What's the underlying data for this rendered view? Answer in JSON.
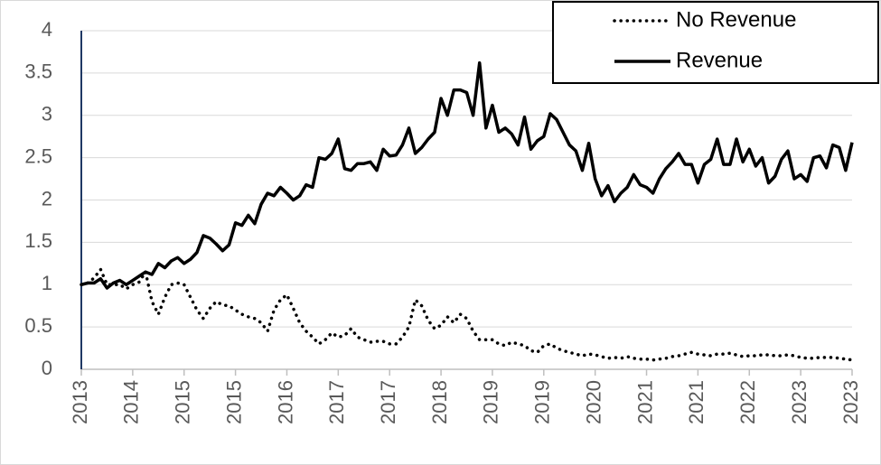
{
  "chart_data": {
    "type": "line",
    "categories": [
      "2013",
      null,
      null,
      null,
      null,
      null,
      null,
      null,
      "2014",
      null,
      null,
      null,
      null,
      null,
      null,
      null,
      "2015",
      null,
      null,
      null,
      null,
      null,
      null,
      null,
      "2015",
      null,
      null,
      null,
      null,
      null,
      null,
      null,
      "2016",
      null,
      null,
      null,
      null,
      null,
      null,
      null,
      "2017",
      null,
      null,
      null,
      null,
      null,
      null,
      null,
      "2017",
      null,
      null,
      null,
      null,
      null,
      null,
      null,
      "2018",
      null,
      null,
      null,
      null,
      null,
      null,
      null,
      "2019",
      null,
      null,
      null,
      null,
      null,
      null,
      null,
      "2019",
      null,
      null,
      null,
      null,
      null,
      null,
      null,
      "2020",
      null,
      null,
      null,
      null,
      null,
      null,
      null,
      "2021",
      null,
      null,
      null,
      null,
      null,
      null,
      null,
      "2021",
      null,
      null,
      null,
      null,
      null,
      null,
      null,
      "2022",
      null,
      null,
      null,
      null,
      null,
      null,
      null,
      "2023",
      null,
      null,
      null,
      null,
      null,
      null,
      null,
      "2023"
    ],
    "series": [
      {
        "name": "No Revenue",
        "color": "#000000",
        "style": "dotted",
        "values": [
          1.0,
          1.02,
          1.08,
          1.18,
          1.0,
          1.0,
          1.0,
          0.95,
          1.0,
          1.03,
          1.15,
          0.8,
          0.65,
          0.85,
          1.0,
          1.02,
          1.0,
          0.85,
          0.7,
          0.6,
          0.72,
          0.8,
          0.76,
          0.75,
          0.7,
          0.65,
          0.62,
          0.6,
          0.55,
          0.45,
          0.7,
          0.82,
          0.88,
          0.72,
          0.55,
          0.45,
          0.38,
          0.3,
          0.35,
          0.43,
          0.38,
          0.4,
          0.48,
          0.38,
          0.35,
          0.32,
          0.33,
          0.33,
          0.3,
          0.3,
          0.38,
          0.5,
          0.82,
          0.75,
          0.58,
          0.48,
          0.52,
          0.62,
          0.55,
          0.65,
          0.6,
          0.45,
          0.35,
          0.35,
          0.35,
          0.3,
          0.28,
          0.32,
          0.3,
          0.28,
          0.22,
          0.2,
          0.28,
          0.3,
          0.25,
          0.22,
          0.2,
          0.18,
          0.16,
          0.18,
          0.17,
          0.15,
          0.13,
          0.14,
          0.13,
          0.15,
          0.13,
          0.12,
          0.12,
          0.11,
          0.12,
          0.13,
          0.15,
          0.16,
          0.18,
          0.2,
          0.18,
          0.17,
          0.16,
          0.18,
          0.18,
          0.19,
          0.17,
          0.15,
          0.16,
          0.16,
          0.17,
          0.17,
          0.16,
          0.16,
          0.17,
          0.16,
          0.14,
          0.13,
          0.13,
          0.14,
          0.14,
          0.14,
          0.13,
          0.12,
          0.11
        ]
      },
      {
        "name": "Revenue",
        "color": "#000000",
        "style": "solid",
        "values": [
          1.0,
          1.02,
          1.02,
          1.07,
          0.96,
          1.02,
          1.05,
          1.0,
          1.05,
          1.1,
          1.15,
          1.12,
          1.25,
          1.2,
          1.28,
          1.32,
          1.25,
          1.3,
          1.38,
          1.58,
          1.55,
          1.48,
          1.4,
          1.47,
          1.73,
          1.7,
          1.82,
          1.72,
          1.95,
          2.08,
          2.05,
          2.15,
          2.08,
          2.0,
          2.05,
          2.18,
          2.15,
          2.5,
          2.48,
          2.55,
          2.72,
          2.37,
          2.35,
          2.43,
          2.43,
          2.45,
          2.35,
          2.6,
          2.52,
          2.53,
          2.65,
          2.85,
          2.55,
          2.62,
          2.72,
          2.8,
          3.2,
          3.0,
          3.3,
          3.3,
          3.27,
          3.0,
          3.62,
          2.85,
          3.12,
          2.8,
          2.85,
          2.78,
          2.65,
          2.98,
          2.6,
          2.7,
          2.75,
          3.02,
          2.95,
          2.8,
          2.65,
          2.58,
          2.35,
          2.67,
          2.25,
          2.05,
          2.17,
          1.98,
          2.08,
          2.15,
          2.3,
          2.18,
          2.15,
          2.08,
          2.25,
          2.37,
          2.45,
          2.55,
          2.42,
          2.42,
          2.2,
          2.42,
          2.48,
          2.72,
          2.42,
          2.42,
          2.72,
          2.45,
          2.6,
          2.4,
          2.5,
          2.2,
          2.28,
          2.48,
          2.58,
          2.25,
          2.3,
          2.22,
          2.5,
          2.52,
          2.38,
          2.65,
          2.62,
          2.35,
          2.68
        ]
      }
    ],
    "ylim": [
      0,
      4
    ],
    "yticks": [
      0,
      0.5,
      1,
      1.5,
      2,
      2.5,
      3,
      3.5,
      4
    ],
    "grid": true,
    "legend": "upper right"
  }
}
